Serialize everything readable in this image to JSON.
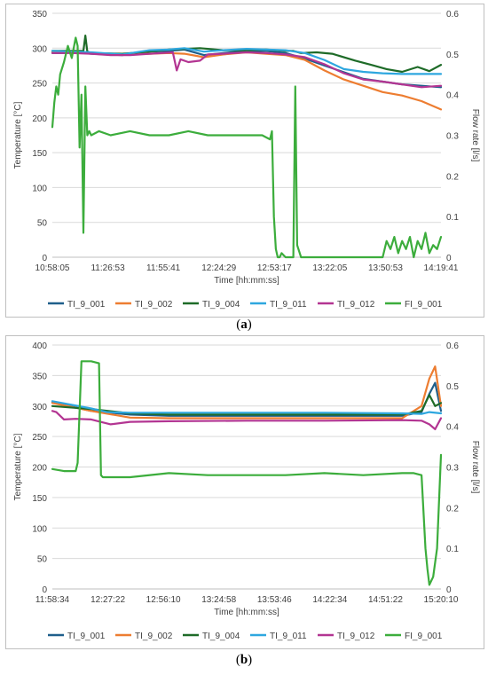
{
  "captions": [
    {
      "open": "(",
      "letter": "a",
      "close": ")"
    },
    {
      "open": "(",
      "letter": "b",
      "close": ")"
    }
  ],
  "chart_data": [
    {
      "type": "line",
      "panel": "a",
      "xlabel": "Time [hh:mm:ss]",
      "ylabel": "Temperature [°C]",
      "y2label": "Flow rate [l/s]",
      "x_ticks": [
        "10:58:05",
        "11:26:53",
        "11:55:41",
        "12:24:29",
        "12:53:17",
        "13:22:05",
        "13:50:53",
        "14:19:41"
      ],
      "ylim": [
        0,
        350
      ],
      "y_ticks": [
        0,
        50,
        100,
        150,
        200,
        250,
        300,
        350
      ],
      "y2lim": [
        0,
        0.6
      ],
      "y2_ticks": [
        "0",
        "0.1",
        "0.2",
        "0.3",
        "0.4",
        "0.5",
        "0.6"
      ],
      "grid": "horizontal",
      "legend": "bottom",
      "series": [
        {
          "name": "TI_9_001",
          "color": "#1f5f8b",
          "axis": "left",
          "x": [
            0,
            0.03,
            0.06,
            0.1,
            0.18,
            0.25,
            0.3,
            0.34,
            0.39,
            0.44,
            0.5,
            0.55,
            0.6,
            0.65,
            0.7,
            0.8,
            0.9,
            1.0
          ],
          "y": [
            293,
            293,
            294,
            292,
            290,
            295,
            296,
            298,
            290,
            293,
            296,
            296,
            293,
            285,
            275,
            256,
            248,
            244
          ]
        },
        {
          "name": "TI_9_002",
          "color": "#ed7d31",
          "axis": "left",
          "x": [
            0,
            0.05,
            0.1,
            0.18,
            0.25,
            0.3,
            0.34,
            0.39,
            0.44,
            0.5,
            0.55,
            0.6,
            0.65,
            0.7,
            0.75,
            0.8,
            0.85,
            0.9,
            0.95,
            1.0
          ],
          "y": [
            295,
            294,
            293,
            291,
            292,
            293,
            292,
            287,
            291,
            294,
            292,
            290,
            283,
            268,
            255,
            246,
            237,
            232,
            224,
            212
          ]
        },
        {
          "name": "TI_9_004",
          "color": "#1e6b28",
          "axis": "left",
          "x": [
            0,
            0.04,
            0.08,
            0.085,
            0.09,
            0.1,
            0.18,
            0.25,
            0.3,
            0.38,
            0.44,
            0.5,
            0.55,
            0.6,
            0.62,
            0.64,
            0.68,
            0.72,
            0.78,
            0.82,
            0.86,
            0.9,
            0.94,
            0.97,
            1.0
          ],
          "y": [
            296,
            296,
            296,
            318,
            295,
            293,
            292,
            295,
            298,
            300,
            297,
            297,
            298,
            296,
            296,
            293,
            294,
            292,
            282,
            276,
            270,
            266,
            273,
            267,
            276
          ]
        },
        {
          "name": "TI_9_011",
          "color": "#2ea7df",
          "axis": "left",
          "x": [
            0,
            0.05,
            0.1,
            0.18,
            0.25,
            0.3,
            0.34,
            0.39,
            0.44,
            0.5,
            0.55,
            0.6,
            0.65,
            0.7,
            0.75,
            0.8,
            0.85,
            0.9,
            0.95,
            1.0
          ],
          "y": [
            296,
            295,
            294,
            291,
            297,
            298,
            300,
            295,
            297,
            299,
            298,
            297,
            293,
            283,
            270,
            266,
            264,
            263,
            263,
            263
          ]
        },
        {
          "name": "TI_9_012",
          "color": "#b33592",
          "axis": "left",
          "x": [
            0,
            0.05,
            0.1,
            0.15,
            0.2,
            0.25,
            0.31,
            0.32,
            0.33,
            0.35,
            0.38,
            0.4,
            0.44,
            0.5,
            0.55,
            0.6,
            0.65,
            0.7,
            0.75,
            0.8,
            0.85,
            0.9,
            0.95,
            1.0
          ],
          "y": [
            293,
            293,
            292,
            290,
            290,
            292,
            294,
            268,
            284,
            280,
            282,
            291,
            292,
            294,
            293,
            291,
            287,
            277,
            264,
            255,
            252,
            248,
            244,
            246
          ]
        },
        {
          "name": "FI_9_001",
          "color": "#3cad3c",
          "axis": "right",
          "x": [
            0,
            0.005,
            0.01,
            0.015,
            0.02,
            0.03,
            0.04,
            0.05,
            0.06,
            0.065,
            0.07,
            0.075,
            0.08,
            0.085,
            0.09,
            0.095,
            0.1,
            0.12,
            0.15,
            0.2,
            0.25,
            0.3,
            0.35,
            0.4,
            0.45,
            0.5,
            0.52,
            0.54,
            0.56,
            0.565,
            0.57,
            0.575,
            0.58,
            0.585,
            0.59,
            0.6,
            0.61,
            0.62,
            0.625,
            0.63,
            0.64,
            0.65,
            0.7,
            0.75,
            0.8,
            0.82,
            0.84,
            0.85,
            0.86,
            0.87,
            0.88,
            0.89,
            0.9,
            0.91,
            0.92,
            0.93,
            0.94,
            0.95,
            0.96,
            0.97,
            0.98,
            0.99,
            1.0
          ],
          "y": [
            0.32,
            0.38,
            0.42,
            0.4,
            0.45,
            0.48,
            0.52,
            0.49,
            0.54,
            0.52,
            0.27,
            0.4,
            0.06,
            0.42,
            0.3,
            0.31,
            0.3,
            0.31,
            0.3,
            0.31,
            0.3,
            0.3,
            0.31,
            0.3,
            0.3,
            0.3,
            0.3,
            0.3,
            0.29,
            0.31,
            0.1,
            0.02,
            0.0,
            0.0,
            0.01,
            0.0,
            0.0,
            0.0,
            0.42,
            0.03,
            0.0,
            0.0,
            0.0,
            0.0,
            0.0,
            0.0,
            0.0,
            0.0,
            0.04,
            0.02,
            0.05,
            0.01,
            0.04,
            0.02,
            0.05,
            0.0,
            0.04,
            0.02,
            0.06,
            0.01,
            0.03,
            0.02,
            0.05
          ]
        }
      ]
    },
    {
      "type": "line",
      "panel": "b",
      "xlabel": "Time [hh:mm:ss]",
      "ylabel": "Temperature [°C]",
      "y2label": "Flow rate [l/s]",
      "x_ticks": [
        "11:58:34",
        "12:27:22",
        "12:56:10",
        "13:24:58",
        "13:53:46",
        "14:22:34",
        "14:51:22",
        "15:20:10"
      ],
      "ylim": [
        0,
        400
      ],
      "y_ticks": [
        0,
        50,
        100,
        150,
        200,
        250,
        300,
        350,
        400
      ],
      "y2lim": [
        0,
        0.6
      ],
      "y2_ticks": [
        "0",
        "0.1",
        "0.2",
        "0.3",
        "0.4",
        "0.5",
        "0.6"
      ],
      "grid": "horizontal",
      "legend": "bottom",
      "series": [
        {
          "name": "TI_9_001",
          "color": "#1f5f8b",
          "axis": "left",
          "x": [
            0,
            0.1,
            0.2,
            0.3,
            0.5,
            0.7,
            0.9,
            0.95,
            0.97,
            0.985,
            1.0
          ],
          "y": [
            306,
            292,
            286,
            284,
            284,
            284,
            284,
            290,
            320,
            338,
            292
          ]
        },
        {
          "name": "TI_9_002",
          "color": "#ed7d31",
          "axis": "left",
          "x": [
            0,
            0.1,
            0.2,
            0.3,
            0.5,
            0.7,
            0.9,
            0.95,
            0.97,
            0.985,
            1.0
          ],
          "y": [
            305,
            292,
            281,
            280,
            280,
            280,
            280,
            300,
            345,
            365,
            300
          ]
        },
        {
          "name": "TI_9_004",
          "color": "#1e6b28",
          "axis": "left",
          "x": [
            0,
            0.1,
            0.2,
            0.3,
            0.5,
            0.7,
            0.9,
            0.95,
            0.97,
            0.985,
            1.0
          ],
          "y": [
            300,
            295,
            288,
            286,
            286,
            286,
            286,
            292,
            318,
            300,
            305
          ]
        },
        {
          "name": "TI_9_011",
          "color": "#2ea7df",
          "axis": "left",
          "x": [
            0,
            0.1,
            0.14,
            0.2,
            0.3,
            0.5,
            0.7,
            0.9,
            0.95,
            0.97,
            1.0
          ],
          "y": [
            308,
            296,
            290,
            289,
            289,
            289,
            289,
            288,
            287,
            290,
            288
          ]
        },
        {
          "name": "TI_9_012",
          "color": "#b33592",
          "axis": "left",
          "x": [
            0,
            0.01,
            0.03,
            0.06,
            0.1,
            0.15,
            0.2,
            0.3,
            0.5,
            0.7,
            0.9,
            0.95,
            0.97,
            0.985,
            1.0
          ],
          "y": [
            292,
            290,
            278,
            279,
            278,
            270,
            274,
            275,
            276,
            276,
            277,
            276,
            270,
            262,
            280
          ]
        },
        {
          "name": "FI_9_001",
          "color": "#3cad3c",
          "axis": "right",
          "x": [
            0,
            0.03,
            0.06,
            0.065,
            0.075,
            0.1,
            0.12,
            0.125,
            0.13,
            0.15,
            0.2,
            0.3,
            0.4,
            0.5,
            0.6,
            0.7,
            0.8,
            0.9,
            0.93,
            0.95,
            0.96,
            0.965,
            0.97,
            0.98,
            0.99,
            1.0
          ],
          "y": [
            0.295,
            0.29,
            0.29,
            0.31,
            0.56,
            0.56,
            0.555,
            0.28,
            0.275,
            0.275,
            0.275,
            0.285,
            0.28,
            0.28,
            0.28,
            0.285,
            0.28,
            0.285,
            0.285,
            0.28,
            0.1,
            0.05,
            0.01,
            0.03,
            0.1,
            0.33
          ]
        }
      ]
    }
  ]
}
